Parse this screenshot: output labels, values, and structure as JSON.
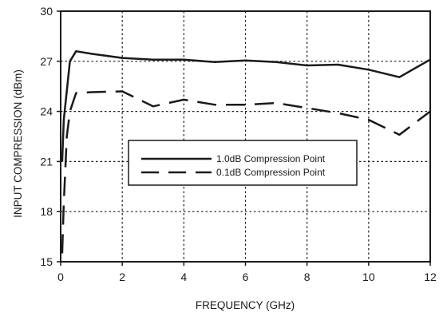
{
  "chart_data": {
    "type": "line",
    "xlabel": "FREQUENCY (GHz)",
    "ylabel": "INPUT COMPRESSION  (dBm)",
    "xlim": [
      0,
      12
    ],
    "ylim": [
      15,
      30
    ],
    "xticks": [
      0,
      2,
      4,
      6,
      8,
      10,
      12
    ],
    "yticks": [
      15,
      18,
      21,
      24,
      27,
      30
    ],
    "grid": true,
    "legend_position": "center-right",
    "series": [
      {
        "name": "1.0dB Compression Point",
        "style": "solid",
        "color": "#1a1a1a",
        "x": [
          0.05,
          0.1,
          0.3,
          0.5,
          1,
          2,
          3,
          4,
          5,
          6,
          7,
          8,
          9,
          10,
          11,
          12
        ],
        "y": [
          21.0,
          23.5,
          27.0,
          27.6,
          27.45,
          27.2,
          27.1,
          27.1,
          26.95,
          27.05,
          26.95,
          26.75,
          26.8,
          26.5,
          26.05,
          27.1
        ]
      },
      {
        "name": "0.1dB Compression Point",
        "style": "dashed",
        "color": "#1a1a1a",
        "x": [
          0.05,
          0.1,
          0.2,
          0.3,
          0.5,
          1,
          2,
          3,
          4,
          5,
          6,
          7,
          8,
          9,
          10,
          11,
          12
        ],
        "y": [
          15.5,
          18.5,
          22.5,
          24.0,
          25.1,
          25.15,
          25.2,
          24.3,
          24.7,
          24.4,
          24.4,
          24.5,
          24.2,
          23.9,
          23.5,
          22.6,
          24.0
        ]
      }
    ]
  }
}
